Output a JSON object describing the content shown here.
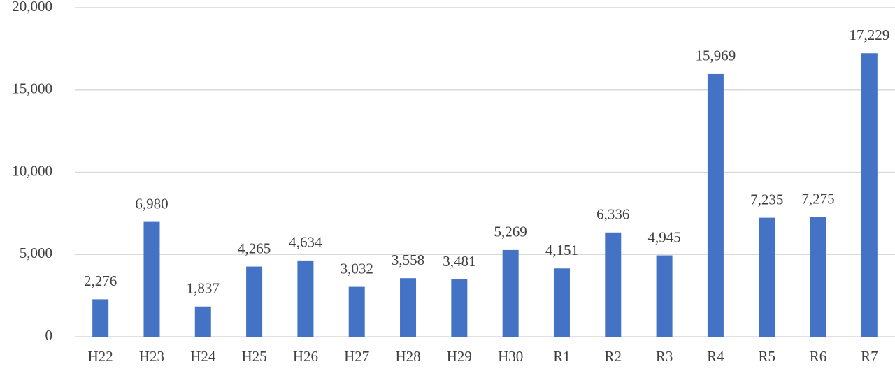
{
  "chart_data": {
    "type": "bar",
    "categories": [
      "H22",
      "H23",
      "H24",
      "H25",
      "H26",
      "H27",
      "H28",
      "H29",
      "H30",
      "R1",
      "R2",
      "R3",
      "R4",
      "R5",
      "R6",
      "R7"
    ],
    "values": [
      2276,
      6980,
      1837,
      4265,
      4634,
      3032,
      3558,
      3481,
      5269,
      4151,
      6336,
      4945,
      15969,
      7235,
      7275,
      17229
    ],
    "value_labels": [
      "2,276",
      "6,980",
      "1,837",
      "4,265",
      "4,634",
      "3,032",
      "3,558",
      "3,481",
      "5,269",
      "4,151",
      "6,336",
      "4,945",
      "15,969",
      "7,235",
      "7,275",
      "17,229"
    ],
    "color": "#4472c4",
    "ylim": [
      0,
      20000
    ],
    "yticks": [
      0,
      {
        "value": 5000,
        "label": "5,000"
      },
      {
        "value": 10000,
        "label": "10,000"
      },
      {
        "value": 15000,
        "label": "15,000"
      },
      {
        "value": 20000,
        "label": "20,000"
      }
    ],
    "grid": true
  }
}
